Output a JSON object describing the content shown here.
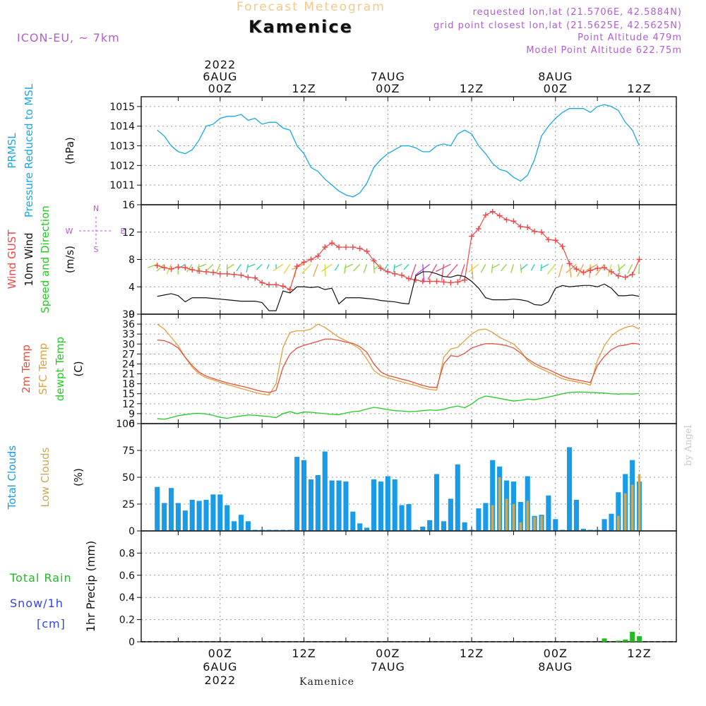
{
  "header": {
    "title": "Forecast Meteogram",
    "location": "Kamenice",
    "model": "ICON-EU, ~ 7km",
    "requested": "requested lon,lat (21.5706E, 42.5884N)",
    "gridpoint": "grid point closest lon,lat (21.5625E, 42.5625N)",
    "point_altitude": "Point Altitude 479m",
    "model_altitude": "Model Point Altitude 622.75m"
  },
  "footer": {
    "location": "Kamenice",
    "credit": "by Angel"
  },
  "colors": {
    "pressure": "#1aa7e8",
    "gust": "#f04848",
    "wind": "#111111",
    "temp2m": "#e8503a",
    "sfc": "#e0a040",
    "dewpt": "#22cc22",
    "total_clouds": "#1a9be8",
    "low_clouds": "#c8aa5a",
    "rain": "#22bb22",
    "snow": "#3344ee",
    "axis_label": "#111111"
  },
  "chart_data": [
    {
      "type": "line",
      "name": "pressure",
      "ylabel": [
        "PRMSL",
        "Pressure Reduced to MSL"
      ],
      "units": "(hPa)",
      "ylim": [
        1010,
        1015.5
      ],
      "yticks": [
        1011,
        1012,
        1013,
        1014,
        1015
      ],
      "ytick_labels": [
        "1011",
        "1012",
        "1013",
        "1014",
        "1015"
      ],
      "x": [
        -9,
        -8,
        -7,
        -6,
        -5,
        -4,
        -3,
        -2,
        -1,
        0,
        1,
        2,
        3,
        4,
        5,
        6,
        7,
        8,
        9,
        10,
        11,
        12,
        13,
        14,
        15,
        16,
        17,
        18,
        19,
        20,
        21,
        22,
        23,
        24,
        25,
        26,
        27,
        28,
        29,
        30,
        31,
        32,
        33,
        34,
        35,
        36,
        37,
        38,
        39,
        40,
        41,
        42,
        43,
        44,
        45,
        46,
        47,
        48,
        49,
        50,
        51,
        52,
        53,
        54,
        55,
        56,
        57,
        58,
        59,
        60
      ],
      "values": [
        1013.8,
        1013.5,
        1013.0,
        1012.7,
        1012.6,
        1012.8,
        1013.3,
        1014.0,
        1014.1,
        1014.4,
        1014.5,
        1014.5,
        1014.6,
        1014.3,
        1014.4,
        1014.1,
        1014.2,
        1014.2,
        1013.9,
        1013.8,
        1013.0,
        1012.6,
        1011.9,
        1011.7,
        1011.3,
        1011.0,
        1010.7,
        1010.5,
        1010.4,
        1010.6,
        1011.1,
        1011.9,
        1012.3,
        1012.6,
        1012.8,
        1013.0,
        1013.0,
        1012.9,
        1012.7,
        1012.7,
        1013.0,
        1013.1,
        1013.0,
        1013.6,
        1013.8,
        1013.6,
        1013.0,
        1012.6,
        1012.1,
        1011.8,
        1011.7,
        1011.4,
        1011.2,
        1011.5,
        1012.3,
        1013.5,
        1014.0,
        1014.4,
        1014.7,
        1014.9,
        1014.9,
        1014.9,
        1014.7,
        1015.0,
        1015.1,
        1015.0,
        1014.8,
        1014.2,
        1013.8,
        1013.0
      ]
    },
    {
      "type": "line",
      "name": "wind",
      "ylabel": [
        "Wind GUST",
        "10m Wind",
        "Speed and Direction"
      ],
      "units": "(m/s)",
      "ylim": [
        0,
        16
      ],
      "yticks": [
        0,
        4,
        8,
        12,
        16
      ],
      "ytick_labels": [
        "0",
        "4",
        "8",
        "12",
        "16"
      ],
      "compass_labels": [
        "N",
        "W",
        "E",
        "S"
      ],
      "x": [
        -9,
        -8,
        -7,
        -6,
        -5,
        -4,
        -3,
        -2,
        -1,
        0,
        1,
        2,
        3,
        4,
        5,
        6,
        7,
        8,
        9,
        10,
        11,
        12,
        13,
        14,
        15,
        16,
        17,
        18,
        19,
        20,
        21,
        22,
        23,
        24,
        25,
        26,
        27,
        28,
        29,
        30,
        31,
        32,
        33,
        34,
        35,
        36,
        37,
        38,
        39,
        40,
        41,
        42,
        43,
        44,
        45,
        46,
        47,
        48,
        49,
        50,
        51,
        52,
        53,
        54,
        55,
        56,
        57,
        58,
        59,
        60
      ],
      "series": [
        {
          "name": "Wind GUST",
          "values": [
            7.1,
            6.8,
            6.6,
            6.9,
            6.8,
            6.5,
            6.3,
            6.2,
            6.1,
            5.9,
            5.9,
            5.8,
            5.7,
            5.4,
            5.3,
            4.6,
            4.3,
            4.3,
            4.1,
            3.6,
            7.0,
            7.6,
            8.0,
            8.5,
            9.8,
            10.4,
            9.8,
            9.8,
            9.8,
            9.6,
            9.2,
            7.8,
            6.7,
            6.2,
            5.9,
            5.7,
            5.2,
            5.0,
            4.8,
            4.8,
            4.8,
            4.7,
            4.6,
            4.7,
            5.0,
            11.4,
            12.5,
            14.5,
            15.0,
            14.4,
            13.8,
            13.6,
            12.8,
            12.7,
            12.1,
            12.0,
            10.9,
            10.8,
            9.9,
            7.4,
            6.6,
            6.1,
            6.4,
            6.7,
            6.8,
            6.2,
            5.6,
            5.4,
            5.8,
            8.0
          ]
        },
        {
          "name": "10m Wind",
          "values": [
            2.6,
            2.8,
            3.0,
            2.7,
            1.8,
            2.4,
            2.4,
            2.4,
            2.3,
            2.2,
            2.1,
            2.0,
            1.9,
            1.9,
            1.9,
            1.7,
            0.5,
            0.5,
            3.4,
            3.1,
            4.0,
            4.0,
            3.9,
            4.0,
            3.6,
            3.8,
            1.5,
            2.4,
            2.4,
            2.4,
            2.3,
            2.2,
            2.0,
            1.9,
            1.8,
            1.6,
            1.5,
            5.6,
            6.2,
            6.2,
            5.9,
            5.5,
            5.4,
            5.7,
            5.5,
            4.8,
            3.8,
            2.4,
            2.1,
            2.1,
            2.1,
            2.2,
            2.1,
            1.9,
            1.4,
            1.3,
            1.8,
            3.8,
            4.2,
            4.0,
            4.1,
            4.2,
            4.2,
            4.0,
            4.4,
            3.8,
            2.7,
            2.7,
            2.8,
            2.6
          ]
        }
      ]
    },
    {
      "type": "line",
      "name": "temperature",
      "ylabel": [
        "2m Temp",
        "SFC Temp",
        "dewpt Temp"
      ],
      "units": "(C)",
      "ylim": [
        6,
        39
      ],
      "yticks": [
        6,
        9,
        12,
        15,
        18,
        21,
        24,
        27,
        30,
        33,
        36,
        39
      ],
      "ytick_labels": [
        "6",
        "9",
        "12",
        "15",
        "18",
        "21",
        "24",
        "27",
        "30",
        "33",
        "36",
        "39"
      ],
      "x": [
        -9,
        -8,
        -7,
        -6,
        -5,
        -4,
        -3,
        -2,
        -1,
        0,
        1,
        2,
        3,
        4,
        5,
        6,
        7,
        8,
        9,
        10,
        11,
        12,
        13,
        14,
        15,
        16,
        17,
        18,
        19,
        20,
        21,
        22,
        23,
        24,
        25,
        26,
        27,
        28,
        29,
        30,
        31,
        32,
        33,
        34,
        35,
        36,
        37,
        38,
        39,
        40,
        41,
        42,
        43,
        44,
        45,
        46,
        47,
        48,
        49,
        50,
        51,
        52,
        53,
        54,
        55,
        56,
        57,
        58,
        59,
        60
      ],
      "series": [
        {
          "name": "2m Temp",
          "values": [
            31.2,
            31.0,
            30.2,
            28.8,
            26.0,
            23.5,
            21.5,
            20.3,
            19.6,
            18.9,
            18.3,
            17.8,
            17.3,
            16.8,
            16.2,
            15.7,
            15.4,
            16.0,
            23.0,
            27.0,
            28.8,
            29.6,
            30.2,
            30.8,
            31.5,
            31.5,
            31.1,
            30.6,
            30.2,
            29.2,
            27.5,
            24.0,
            21.6,
            20.5,
            20.0,
            19.4,
            18.9,
            18.2,
            17.5,
            17.0,
            16.9,
            24.0,
            26.5,
            26.2,
            27.2,
            28.8,
            29.5,
            30.1,
            30.1,
            29.9,
            29.5,
            28.8,
            27.3,
            25.5,
            24.2,
            23.1,
            22.3,
            21.3,
            20.3,
            19.6,
            19.2,
            18.8,
            18.4,
            23.5,
            26.3,
            28.3,
            29.4,
            29.7,
            30.2,
            30.0
          ]
        },
        {
          "name": "SFC Temp",
          "values": [
            36.0,
            34.5,
            32.0,
            29.5,
            26.0,
            23.0,
            21.0,
            19.8,
            19.2,
            18.4,
            17.8,
            17.2,
            16.6,
            16.0,
            15.4,
            14.9,
            14.6,
            18.0,
            29.0,
            33.5,
            34.0,
            34.0,
            34.5,
            36.0,
            35.0,
            33.5,
            32.0,
            31.0,
            29.8,
            28.5,
            25.5,
            22.0,
            20.5,
            19.8,
            19.2,
            18.6,
            18.0,
            17.5,
            16.8,
            16.3,
            16.1,
            26.0,
            28.5,
            29.0,
            31.0,
            33.0,
            34.3,
            34.5,
            33.5,
            32.0,
            31.0,
            30.0,
            28.0,
            25.0,
            23.5,
            22.5,
            21.5,
            20.5,
            19.5,
            19.0,
            18.6,
            18.2,
            17.6,
            25.0,
            29.5,
            32.5,
            34.0,
            35.0,
            35.5,
            34.5
          ]
        },
        {
          "name": "dewpt Temp",
          "values": [
            7.5,
            7.3,
            7.8,
            8.4,
            8.7,
            9.0,
            9.1,
            8.9,
            8.5,
            7.9,
            7.6,
            8.0,
            8.3,
            8.6,
            8.5,
            8.3,
            8.1,
            7.8,
            9.0,
            9.6,
            9.0,
            9.5,
            9.4,
            9.2,
            9.0,
            8.8,
            8.7,
            9.2,
            9.6,
            9.8,
            10.4,
            10.9,
            10.6,
            10.2,
            9.9,
            9.8,
            9.6,
            9.7,
            9.9,
            10.1,
            10.0,
            10.3,
            10.9,
            11.3,
            10.8,
            11.9,
            13.5,
            14.3,
            14.0,
            13.6,
            13.2,
            12.8,
            13.0,
            13.4,
            13.2,
            13.6,
            14.0,
            14.5,
            15.0,
            15.4,
            15.5,
            15.5,
            15.4,
            15.3,
            15.2,
            15.0,
            14.9,
            15.0,
            14.9,
            15.1
          ]
        }
      ]
    },
    {
      "type": "bar",
      "name": "clouds",
      "ylabel": [
        "Total Clouds",
        "Low Clouds"
      ],
      "units": "(%)",
      "ylim": [
        0,
        100
      ],
      "yticks": [
        0,
        25,
        50,
        75,
        100
      ],
      "ytick_labels": [
        "0",
        "25",
        "50",
        "75",
        "100"
      ],
      "x": [
        -9,
        -8,
        -7,
        -6,
        -5,
        -4,
        -3,
        -2,
        -1,
        0,
        1,
        2,
        3,
        4,
        5,
        6,
        7,
        8,
        9,
        10,
        11,
        12,
        13,
        14,
        15,
        16,
        17,
        18,
        19,
        20,
        21,
        22,
        23,
        24,
        25,
        26,
        27,
        28,
        29,
        30,
        31,
        32,
        33,
        34,
        35,
        36,
        37,
        38,
        39,
        40,
        41,
        42,
        43,
        44,
        45,
        46,
        47,
        48,
        49,
        50,
        51,
        52,
        53,
        54,
        55,
        56,
        57,
        58,
        59,
        60
      ],
      "series": [
        {
          "name": "Total Clouds",
          "values": [
            41,
            26,
            40,
            26,
            19,
            29,
            28,
            29,
            34,
            34,
            24,
            9,
            15,
            9,
            1,
            1,
            1,
            1,
            1,
            1,
            69,
            66,
            48,
            52,
            74,
            47,
            47,
            46,
            18,
            7,
            3,
            48,
            46,
            51,
            48,
            24,
            25,
            1,
            4,
            10,
            53,
            9,
            30,
            62,
            8,
            1,
            21,
            26,
            66,
            60,
            47,
            46,
            27,
            51,
            14,
            15,
            33,
            11,
            1,
            78,
            29,
            2,
            1,
            1,
            11,
            16,
            36,
            53,
            66,
            46
          ]
        },
        {
          "name": "Low Clouds",
          "values": [
            0,
            0,
            0,
            0,
            0,
            0,
            0,
            0,
            0,
            0,
            0,
            0,
            0,
            0,
            0,
            0,
            0,
            0,
            0,
            0,
            0,
            0,
            0,
            0,
            0,
            0,
            0,
            0,
            0,
            0,
            0,
            0,
            0,
            0,
            0,
            0,
            0,
            0,
            0,
            0,
            0,
            0,
            0,
            0,
            0,
            0,
            0,
            0,
            24,
            50,
            30,
            25,
            8,
            28,
            13,
            14,
            0,
            0,
            0,
            0,
            0,
            0,
            0,
            0,
            0,
            0,
            14,
            35,
            43,
            53
          ]
        }
      ]
    },
    {
      "type": "bar",
      "name": "precipitation",
      "ylabel": [
        "Total Rain",
        "Snow/1h",
        "[cm]"
      ],
      "units": "1hr Precip (mm)",
      "ylim": [
        0,
        1
      ],
      "yticks": [
        0,
        0.2,
        0.4,
        0.6,
        0.8
      ],
      "ytick_labels": [
        "0",
        "0.2",
        "0.4",
        "0.6",
        "0.8"
      ],
      "x": [
        55,
        56,
        57,
        58,
        59,
        60
      ],
      "series": [
        {
          "name": "Total Rain",
          "values": [
            0.03,
            0,
            0.01,
            0.02,
            0.09,
            0.05
          ]
        },
        {
          "name": "Snow/1h",
          "values": [
            0,
            0,
            0,
            0,
            0,
            0
          ]
        }
      ]
    }
  ],
  "time_axis": {
    "top_labels": [
      {
        "t": 0,
        "lines": [
          "2022",
          "6AUG",
          "00Z"
        ]
      },
      {
        "t": 12,
        "lines": [
          "12Z"
        ]
      },
      {
        "t": 24,
        "lines": [
          "7AUG",
          "00Z"
        ]
      },
      {
        "t": 36,
        "lines": [
          "12Z"
        ]
      },
      {
        "t": 48,
        "lines": [
          "8AUG",
          "00Z"
        ]
      },
      {
        "t": 60,
        "lines": [
          "12Z"
        ]
      }
    ],
    "bottom_labels": [
      {
        "t": 0,
        "lines": [
          "00Z",
          "6AUG",
          "2022"
        ]
      },
      {
        "t": 12,
        "lines": [
          "12Z"
        ]
      },
      {
        "t": 24,
        "lines": [
          "00Z",
          "7AUG"
        ]
      },
      {
        "t": 36,
        "lines": [
          "12Z"
        ]
      },
      {
        "t": 48,
        "lines": [
          "00Z",
          "8AUG"
        ]
      },
      {
        "t": 60,
        "lines": [
          "12Z"
        ]
      }
    ],
    "t_start": -11.3,
    "t_end": 65.3
  }
}
